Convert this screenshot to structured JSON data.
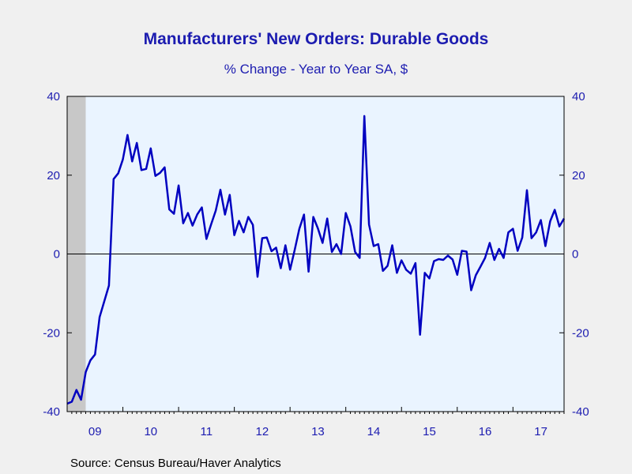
{
  "chart_data": {
    "type": "line",
    "title": "Manufacturers' New Orders: Durable Goods",
    "subtitle": "% Change - Year to Year     SA, $",
    "source": "Source:  Census Bureau/Haver Analytics",
    "ylim": [
      -40,
      40
    ],
    "yticks": [
      -40,
      -20,
      0,
      20,
      40
    ],
    "ytick_labels": [
      "-40",
      "-20",
      "0",
      "20",
      "40"
    ],
    "xlim": [
      2009.0,
      2017.917
    ],
    "xtick_labels": [
      "09",
      "10",
      "11",
      "12",
      "13",
      "14",
      "15",
      "16",
      "17"
    ],
    "recession_shading": [
      2009.0,
      2009.333
    ],
    "grid": false,
    "zero_line": true,
    "series": [
      {
        "color": "#0000c0",
        "x": [
          2009.0,
          2009.083,
          2009.167,
          2009.25,
          2009.333,
          2009.417,
          2009.5,
          2009.583,
          2009.667,
          2009.75,
          2009.833,
          2009.917,
          2010.0,
          2010.083,
          2010.167,
          2010.25,
          2010.333,
          2010.417,
          2010.5,
          2010.583,
          2010.667,
          2010.75,
          2010.833,
          2010.917,
          2011.0,
          2011.083,
          2011.167,
          2011.25,
          2011.333,
          2011.417,
          2011.5,
          2011.583,
          2011.667,
          2011.75,
          2011.833,
          2011.917,
          2012.0,
          2012.083,
          2012.167,
          2012.25,
          2012.333,
          2012.417,
          2012.5,
          2012.583,
          2012.667,
          2012.75,
          2012.833,
          2012.917,
          2013.0,
          2013.083,
          2013.167,
          2013.25,
          2013.333,
          2013.417,
          2013.5,
          2013.583,
          2013.667,
          2013.75,
          2013.833,
          2013.917,
          2014.0,
          2014.083,
          2014.167,
          2014.25,
          2014.333,
          2014.417,
          2014.5,
          2014.583,
          2014.667,
          2014.75,
          2014.833,
          2014.917,
          2015.0,
          2015.083,
          2015.167,
          2015.25,
          2015.333,
          2015.417,
          2015.5,
          2015.583,
          2015.667,
          2015.75,
          2015.833,
          2015.917,
          2016.0,
          2016.083,
          2016.167,
          2016.25,
          2016.333,
          2016.417,
          2016.5,
          2016.583,
          2016.667,
          2016.75,
          2016.833,
          2016.917,
          2017.0,
          2017.083,
          2017.167,
          2017.25,
          2017.333,
          2017.417,
          2017.5,
          2017.583,
          2017.667,
          2017.75,
          2017.833,
          2017.917
        ],
        "y": [
          -38.0,
          -37.5,
          -34.5,
          -37.0,
          -30.0,
          -27.0,
          -25.5,
          -16.0,
          -12.0,
          -8.0,
          19.0,
          20.5,
          24.0,
          30.2,
          23.5,
          28.2,
          21.3,
          21.6,
          26.8,
          19.8,
          20.6,
          22.0,
          11.3,
          10.2,
          17.4,
          7.8,
          10.4,
          7.2,
          10.0,
          11.8,
          3.8,
          7.5,
          11.0,
          16.3,
          10.0,
          15.0,
          4.8,
          8.4,
          5.5,
          9.4,
          7.4,
          -5.8,
          4.0,
          4.2,
          0.7,
          1.6,
          -3.6,
          2.2,
          -4.0,
          1.0,
          6.4,
          10.0,
          -4.5,
          9.4,
          6.5,
          2.8,
          9.0,
          0.5,
          2.5,
          0.0,
          10.4,
          7.0,
          0.5,
          -1.0,
          35.0,
          7.5,
          2.0,
          2.5,
          -4.3,
          -3.0,
          2.2,
          -4.8,
          -1.6,
          -4.0,
          -5.0,
          -2.3,
          -20.5,
          -4.8,
          -6.2,
          -1.8,
          -1.3,
          -1.5,
          -0.4,
          -1.4,
          -5.3,
          0.8,
          0.6,
          -9.2,
          -5.4,
          -3.2,
          -1.0,
          2.8,
          -1.5,
          1.3,
          -1.0,
          5.5,
          6.4,
          0.8,
          4.2,
          16.2,
          4.0,
          5.5,
          8.6,
          2.0,
          8.3,
          11.2,
          7.0,
          9.0
        ]
      }
    ]
  }
}
